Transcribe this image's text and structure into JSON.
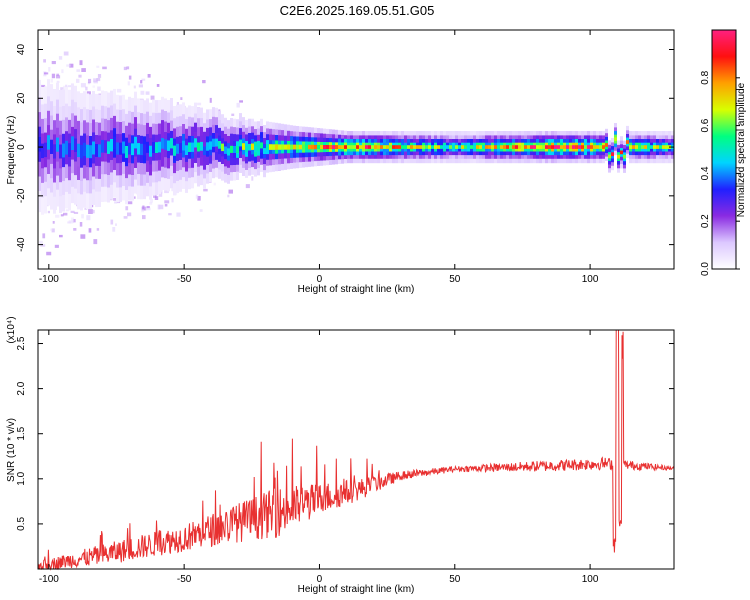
{
  "chart_title": "C2E6.2025.169.05.51.G05",
  "chart_data": [
    {
      "type": "heatmap",
      "title": "C2E6.2025.169.05.51.G05",
      "xlabel": "Height of straight line (km)",
      "ylabel": "Frequency (Hz)",
      "xlim": [
        -104,
        131
      ],
      "ylim": [
        -50,
        48
      ],
      "xticks": [
        -100,
        -50,
        0,
        50,
        100
      ],
      "yticks": [
        -40,
        -20,
        0,
        20,
        40
      ],
      "colorbar": {
        "label": "Normalized spectral amplitude",
        "range": [
          0,
          1
        ],
        "ticks": [
          "0.0",
          "0.2",
          "0.4",
          "0.6",
          "0.8"
        ],
        "colormap": [
          "#ffffff",
          "#dcc8ff",
          "#8a2be2",
          "#2020ff",
          "#00d4ff",
          "#00ff80",
          "#d8ff00",
          "#ffa000",
          "#ff1010",
          "#ff2080"
        ]
      },
      "ridge_profile": [
        {
          "x": -104,
          "amp": 0.35,
          "spread": 12
        },
        {
          "x": -75,
          "amp": 0.4,
          "spread": 10
        },
        {
          "x": -50,
          "amp": 0.45,
          "spread": 8
        },
        {
          "x": -35,
          "amp": 0.55,
          "spread": 6
        },
        {
          "x": -10,
          "amp": 0.7,
          "spread": 4
        },
        {
          "x": 10,
          "amp": 0.9,
          "spread": 3
        },
        {
          "x": 50,
          "amp": 0.6,
          "spread": 3
        },
        {
          "x": 90,
          "amp": 0.95,
          "spread": 3
        },
        {
          "x": 131,
          "amp": 0.55,
          "spread": 3
        }
      ]
    },
    {
      "type": "line",
      "xlabel": "Height of straight line (km)",
      "ylabel": "SNR (10 * v/v)",
      "y_multiplier": "(x10⁴)",
      "xlim": [
        -104,
        131
      ],
      "ylim": [
        0,
        2.65
      ],
      "xticks": [
        -100,
        -50,
        0,
        50,
        100
      ],
      "yticks": [
        "0.5",
        "1.0",
        "1.5",
        "2.0",
        "2.5"
      ],
      "color": "#e83030",
      "trend": [
        {
          "x": -104,
          "y": 0.02,
          "noise": 0.05
        },
        {
          "x": -80,
          "y": 0.12,
          "noise": 0.12
        },
        {
          "x": -50,
          "y": 0.3,
          "noise": 0.15
        },
        {
          "x": -30,
          "y": 0.45,
          "noise": 0.22
        },
        {
          "x": -15,
          "y": 0.55,
          "noise": 0.28
        },
        {
          "x": 0,
          "y": 0.72,
          "noise": 0.18
        },
        {
          "x": 15,
          "y": 0.85,
          "noise": 0.12
        },
        {
          "x": 30,
          "y": 1.02,
          "noise": 0.05
        },
        {
          "x": 50,
          "y": 1.1,
          "noise": 0.03
        },
        {
          "x": 80,
          "y": 1.12,
          "noise": 0.06
        },
        {
          "x": 105,
          "y": 1.15,
          "noise": 0.07
        },
        {
          "x": 131,
          "y": 1.11,
          "noise": 0.02
        }
      ],
      "feature_near_110": {
        "dip_to": 0.15,
        "peak_to": 2.65,
        "shelf": 0.45
      }
    }
  ]
}
